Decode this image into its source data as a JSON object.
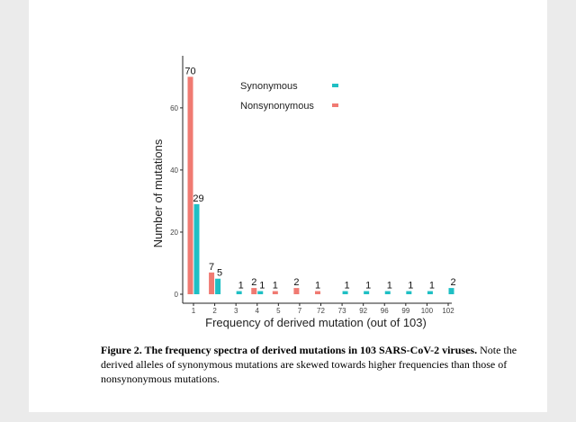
{
  "chart_data": {
    "type": "bar",
    "categories": [
      "1",
      "2",
      "3",
      "4",
      "5",
      "7",
      "72",
      "73",
      "92",
      "96",
      "99",
      "100",
      "102"
    ],
    "series": [
      {
        "name": "Nonsynonymous",
        "color": "#f07a72",
        "values": [
          70,
          7,
          0,
          2,
          1,
          2,
          1,
          0,
          0,
          0,
          0,
          0,
          0
        ],
        "labels": [
          "70",
          "7",
          "",
          "2",
          "1",
          "2",
          "1",
          "",
          "",
          "",
          "",
          "",
          ""
        ]
      },
      {
        "name": "Synonymous",
        "color": "#1fbfc4",
        "values": [
          29,
          5,
          1,
          1,
          0,
          0,
          0,
          1,
          1,
          1,
          1,
          1,
          2
        ],
        "labels": [
          "29",
          "5",
          "1",
          "1",
          "",
          "",
          "",
          "1",
          "1",
          "1",
          "1",
          "1",
          "2"
        ]
      }
    ],
    "legend_order": [
      "Synonymous",
      "Nonsynonymous"
    ],
    "legend_position": "top-right",
    "xlabel": "Frequency of derived mutation (out of 103)",
    "ylabel": "Number of mutations",
    "yticks": [
      0,
      20,
      40,
      60
    ],
    "ylim": [
      0,
      73
    ],
    "grid": false
  },
  "caption": {
    "bold": "Figure 2. The frequency spectra of derived mutations in 103 SARS-CoV-2 viruses.",
    "text": " Note the derived alleles of synonymous mutations are skewed towards higher frequencies than those of nonsynonymous mutations."
  }
}
